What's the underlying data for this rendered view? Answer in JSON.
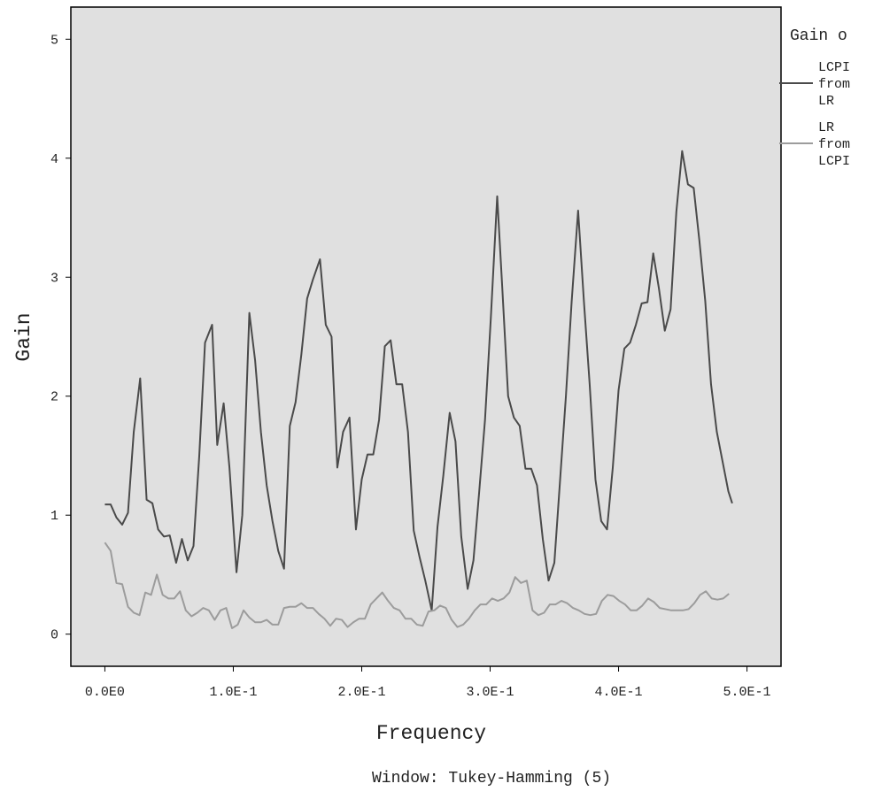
{
  "chart_data": {
    "type": "line",
    "xlabel": "Frequency",
    "ylabel": "Gain",
    "footnote": "Window: Tukey-Hamming (5)",
    "legend_title": "Gain o",
    "legend_position": "right",
    "xlim": [
      -0.0265,
      0.5265
    ],
    "ylim": [
      -0.27,
      5.27
    ],
    "x_ticks": [
      {
        "value": 0.0,
        "label": "0.0E0"
      },
      {
        "value": 0.1,
        "label": "1.0E-1"
      },
      {
        "value": 0.2,
        "label": "2.0E-1"
      },
      {
        "value": 0.3,
        "label": "3.0E-1"
      },
      {
        "value": 0.4,
        "label": "4.0E-1"
      },
      {
        "value": 0.5,
        "label": "5.0E-1"
      }
    ],
    "y_ticks": [
      {
        "value": 0,
        "label": "0"
      },
      {
        "value": 1,
        "label": "1"
      },
      {
        "value": 2,
        "label": "2"
      },
      {
        "value": 3,
        "label": "3"
      },
      {
        "value": 4,
        "label": "4"
      },
      {
        "value": 5,
        "label": "5"
      }
    ],
    "grid": false,
    "plot_background": "#e0e0e0",
    "series": [
      {
        "name": "LCPI from LR",
        "legend_lines": [
          "LCPI",
          "from",
          "LR"
        ],
        "color": "#4a4a4a",
        "points": [
          [
            0.0,
            1.09
          ],
          [
            0.0045,
            1.09
          ],
          [
            0.009,
            0.98
          ],
          [
            0.0135,
            0.92
          ],
          [
            0.018,
            1.02
          ],
          [
            0.0225,
            1.7
          ],
          [
            0.0275,
            2.15
          ],
          [
            0.0325,
            1.13
          ],
          [
            0.037,
            1.1
          ],
          [
            0.0415,
            0.88
          ],
          [
            0.046,
            0.82
          ],
          [
            0.0505,
            0.83
          ],
          [
            0.0555,
            0.6
          ],
          [
            0.06,
            0.8
          ],
          [
            0.0645,
            0.62
          ],
          [
            0.069,
            0.74
          ],
          [
            0.0735,
            1.5
          ],
          [
            0.078,
            2.45
          ],
          [
            0.0835,
            2.6
          ],
          [
            0.0875,
            1.59
          ],
          [
            0.0925,
            1.94
          ],
          [
            0.097,
            1.4
          ],
          [
            0.1025,
            0.52
          ],
          [
            0.107,
            1.0
          ],
          [
            0.1125,
            2.7
          ],
          [
            0.117,
            2.3
          ],
          [
            0.1215,
            1.7
          ],
          [
            0.126,
            1.25
          ],
          [
            0.1305,
            0.95
          ],
          [
            0.135,
            0.7
          ],
          [
            0.1395,
            0.55
          ],
          [
            0.144,
            1.75
          ],
          [
            0.1485,
            1.95
          ],
          [
            0.153,
            2.35
          ],
          [
            0.1575,
            2.82
          ],
          [
            0.162,
            2.98
          ],
          [
            0.1675,
            3.15
          ],
          [
            0.172,
            2.6
          ],
          [
            0.1765,
            2.5
          ],
          [
            0.181,
            1.4
          ],
          [
            0.1855,
            1.7
          ],
          [
            0.1905,
            1.82
          ],
          [
            0.1955,
            0.88
          ],
          [
            0.2,
            1.3
          ],
          [
            0.2045,
            1.51
          ],
          [
            0.209,
            1.51
          ],
          [
            0.2135,
            1.8
          ],
          [
            0.218,
            2.42
          ],
          [
            0.2225,
            2.47
          ],
          [
            0.227,
            2.1
          ],
          [
            0.2315,
            2.1
          ],
          [
            0.236,
            1.7
          ],
          [
            0.2405,
            0.87
          ],
          [
            0.245,
            0.65
          ],
          [
            0.2495,
            0.45
          ],
          [
            0.2545,
            0.2
          ],
          [
            0.259,
            0.9
          ],
          [
            0.2635,
            1.33
          ],
          [
            0.2685,
            1.86
          ],
          [
            0.273,
            1.62
          ],
          [
            0.2775,
            0.82
          ],
          [
            0.2825,
            0.38
          ],
          [
            0.287,
            0.62
          ],
          [
            0.2915,
            1.2
          ],
          [
            0.296,
            1.8
          ],
          [
            0.3005,
            2.65
          ],
          [
            0.3055,
            3.68
          ],
          [
            0.3095,
            2.9
          ],
          [
            0.314,
            2.0
          ],
          [
            0.3185,
            1.82
          ],
          [
            0.323,
            1.75
          ],
          [
            0.3275,
            1.39
          ],
          [
            0.332,
            1.39
          ],
          [
            0.3365,
            1.25
          ],
          [
            0.341,
            0.8
          ],
          [
            0.3455,
            0.45
          ],
          [
            0.35,
            0.6
          ],
          [
            0.3545,
            1.3
          ],
          [
            0.359,
            2.0
          ],
          [
            0.3635,
            2.8
          ],
          [
            0.3685,
            3.56
          ],
          [
            0.373,
            2.8
          ],
          [
            0.3775,
            2.1
          ],
          [
            0.382,
            1.3
          ],
          [
            0.3865,
            0.95
          ],
          [
            0.391,
            0.88
          ],
          [
            0.3955,
            1.4
          ],
          [
            0.4,
            2.05
          ],
          [
            0.4045,
            2.4
          ],
          [
            0.409,
            2.45
          ],
          [
            0.4135,
            2.6
          ],
          [
            0.418,
            2.78
          ],
          [
            0.4225,
            2.79
          ],
          [
            0.427,
            3.2
          ],
          [
            0.4315,
            2.9
          ],
          [
            0.436,
            2.55
          ],
          [
            0.4405,
            2.73
          ],
          [
            0.445,
            3.55
          ],
          [
            0.4495,
            4.06
          ],
          [
            0.454,
            3.78
          ],
          [
            0.4585,
            3.75
          ],
          [
            0.463,
            3.3
          ],
          [
            0.4675,
            2.8
          ],
          [
            0.472,
            2.1
          ],
          [
            0.4765,
            1.7
          ],
          [
            0.481,
            1.45
          ],
          [
            0.4855,
            1.2
          ],
          [
            0.4885,
            1.1
          ]
        ]
      },
      {
        "name": "LR from LCPI",
        "legend_lines": [
          "LR",
          "from",
          "LCPI"
        ],
        "color": "#9c9c9c",
        "points": [
          [
            0.0,
            0.77
          ],
          [
            0.0045,
            0.7
          ],
          [
            0.009,
            0.43
          ],
          [
            0.0135,
            0.42
          ],
          [
            0.018,
            0.23
          ],
          [
            0.0225,
            0.18
          ],
          [
            0.027,
            0.16
          ],
          [
            0.0315,
            0.35
          ],
          [
            0.036,
            0.33
          ],
          [
            0.0405,
            0.5
          ],
          [
            0.045,
            0.33
          ],
          [
            0.0495,
            0.3
          ],
          [
            0.054,
            0.3
          ],
          [
            0.0585,
            0.36
          ],
          [
            0.063,
            0.2
          ],
          [
            0.0675,
            0.15
          ],
          [
            0.072,
            0.18
          ],
          [
            0.0765,
            0.22
          ],
          [
            0.081,
            0.2
          ],
          [
            0.0855,
            0.12
          ],
          [
            0.09,
            0.2
          ],
          [
            0.0945,
            0.22
          ],
          [
            0.099,
            0.05
          ],
          [
            0.1035,
            0.08
          ],
          [
            0.108,
            0.2
          ],
          [
            0.1125,
            0.14
          ],
          [
            0.117,
            0.1
          ],
          [
            0.1215,
            0.1
          ],
          [
            0.126,
            0.12
          ],
          [
            0.1305,
            0.08
          ],
          [
            0.135,
            0.08
          ],
          [
            0.1395,
            0.22
          ],
          [
            0.144,
            0.23
          ],
          [
            0.1485,
            0.23
          ],
          [
            0.153,
            0.26
          ],
          [
            0.1575,
            0.22
          ],
          [
            0.162,
            0.22
          ],
          [
            0.1665,
            0.17
          ],
          [
            0.171,
            0.13
          ],
          [
            0.1755,
            0.07
          ],
          [
            0.18,
            0.13
          ],
          [
            0.1845,
            0.12
          ],
          [
            0.189,
            0.06
          ],
          [
            0.1935,
            0.1
          ],
          [
            0.198,
            0.13
          ],
          [
            0.2025,
            0.13
          ],
          [
            0.207,
            0.25
          ],
          [
            0.2115,
            0.3
          ],
          [
            0.216,
            0.35
          ],
          [
            0.2205,
            0.28
          ],
          [
            0.225,
            0.22
          ],
          [
            0.2295,
            0.2
          ],
          [
            0.234,
            0.13
          ],
          [
            0.2385,
            0.13
          ],
          [
            0.243,
            0.08
          ],
          [
            0.2475,
            0.07
          ],
          [
            0.252,
            0.19
          ],
          [
            0.2565,
            0.2
          ],
          [
            0.261,
            0.24
          ],
          [
            0.2655,
            0.22
          ],
          [
            0.27,
            0.12
          ],
          [
            0.2745,
            0.06
          ],
          [
            0.279,
            0.08
          ],
          [
            0.2835,
            0.13
          ],
          [
            0.288,
            0.2
          ],
          [
            0.2925,
            0.25
          ],
          [
            0.297,
            0.25
          ],
          [
            0.3015,
            0.3
          ],
          [
            0.306,
            0.28
          ],
          [
            0.3105,
            0.3
          ],
          [
            0.315,
            0.35
          ],
          [
            0.3195,
            0.48
          ],
          [
            0.324,
            0.43
          ],
          [
            0.3285,
            0.45
          ],
          [
            0.333,
            0.2
          ],
          [
            0.3375,
            0.16
          ],
          [
            0.342,
            0.18
          ],
          [
            0.3465,
            0.25
          ],
          [
            0.351,
            0.25
          ],
          [
            0.3555,
            0.28
          ],
          [
            0.36,
            0.26
          ],
          [
            0.3645,
            0.22
          ],
          [
            0.369,
            0.2
          ],
          [
            0.3735,
            0.17
          ],
          [
            0.378,
            0.16
          ],
          [
            0.3825,
            0.17
          ],
          [
            0.387,
            0.28
          ],
          [
            0.3915,
            0.33
          ],
          [
            0.396,
            0.32
          ],
          [
            0.4005,
            0.28
          ],
          [
            0.405,
            0.25
          ],
          [
            0.4095,
            0.2
          ],
          [
            0.414,
            0.2
          ],
          [
            0.4185,
            0.24
          ],
          [
            0.423,
            0.3
          ],
          [
            0.4275,
            0.27
          ],
          [
            0.432,
            0.22
          ],
          [
            0.4365,
            0.21
          ],
          [
            0.441,
            0.2
          ],
          [
            0.4455,
            0.2
          ],
          [
            0.45,
            0.2
          ],
          [
            0.4545,
            0.21
          ],
          [
            0.459,
            0.26
          ],
          [
            0.4635,
            0.33
          ],
          [
            0.468,
            0.36
          ],
          [
            0.4725,
            0.3
          ],
          [
            0.477,
            0.29
          ],
          [
            0.4815,
            0.3
          ],
          [
            0.486,
            0.34
          ]
        ]
      }
    ]
  }
}
